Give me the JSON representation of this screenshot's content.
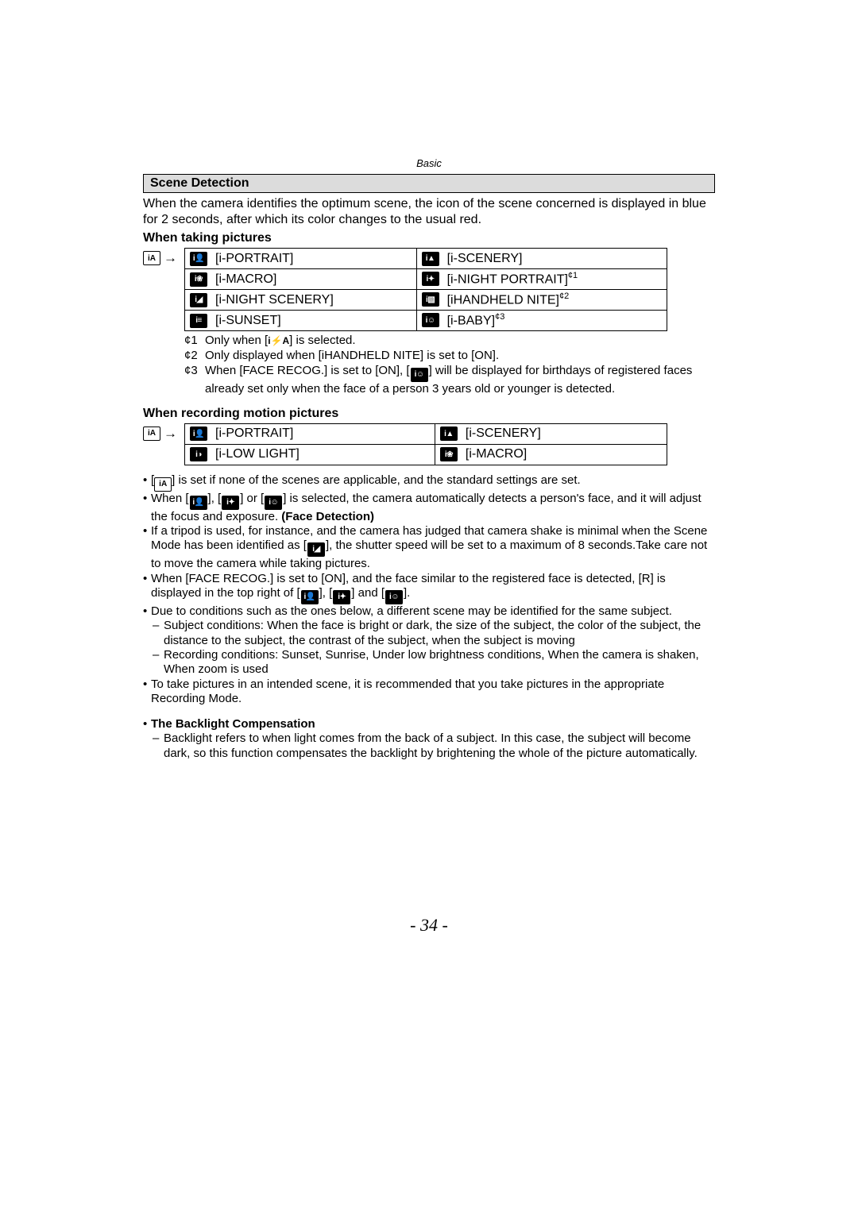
{
  "header": {
    "basic": "Basic"
  },
  "section": {
    "title": "Scene Detection"
  },
  "intro": "When the camera identifies the optimum scene, the icon of the scene concerned is displayed in blue for 2 seconds, after which its color changes to the usual red.",
  "sub1": "When taking pictures",
  "sub2": "When recording motion pictures",
  "iaLabel": "iA",
  "arrow": "→",
  "table1": [
    [
      {
        "icon": "i👤",
        "label": "[i-PORTRAIT]"
      },
      {
        "icon": "i▲",
        "label": "[i-SCENERY]"
      }
    ],
    [
      {
        "icon": "i❀",
        "label": "[i-MACRO]"
      },
      {
        "icon": "i✦",
        "label": "[i-NIGHT PORTRAIT]",
        "sup": "¢1"
      }
    ],
    [
      {
        "icon": "i◢",
        "label": "[i-NIGHT SCENERY]"
      },
      {
        "icon": "i▧",
        "label": "[iHANDHELD NITE]",
        "sup": "¢2"
      }
    ],
    [
      {
        "icon": "i≡",
        "label": "[i-SUNSET]"
      },
      {
        "icon": "i☺",
        "label": "[i-BABY]",
        "sup": "¢3"
      }
    ]
  ],
  "fn1": {
    "m": "¢1",
    "t": "Only when [ ] is selected.",
    "flash": "i⚡A"
  },
  "fn2": {
    "m": "¢2",
    "t": "Only displayed when [iHANDHELD NITE] is set to [ON]."
  },
  "fn3": {
    "m": "¢3",
    "t1": "When [FACE RECOG.] is set to [ON], [",
    "t2": "] will be displayed for birthdays of registered faces already set only when the face of a person 3 years old or younger is detected."
  },
  "table2": [
    [
      {
        "icon": "i👤",
        "label": "[i-PORTRAIT]"
      },
      {
        "icon": "i▲",
        "label": "[i-SCENERY]"
      }
    ],
    [
      {
        "icon": "i◑",
        "label": "[i-LOW LIGHT]"
      },
      {
        "icon": "i❀",
        "label": "[i-MACRO]"
      }
    ]
  ],
  "bul1a": "[",
  "bul1b": "] is set if none of the scenes are applicable, and the standard settings are set.",
  "bul2a": "When [",
  "bul2b": "], [",
  "bul2c": "] or [",
  "bul2d": "] is selected, the camera automatically detects a person's face, and it will adjust the focus and exposure. ",
  "bul2e": "(Face Detection)",
  "bul3a": "If a tripod is used, for instance, and the camera has judged that camera shake is minimal when the Scene Mode has been identified as [",
  "bul3b": "], the shutter speed will be set to a maximum of 8 seconds.Take care not to move the camera while taking pictures.",
  "bul4a": "When [FACE RECOG.] is set to [ON], and the face similar to the registered face is detected, [R] is displayed in the top right of [",
  "bul4b": "], [",
  "bul4c": "] and [",
  "bul4d": "].",
  "bul5": "Due to conditions such as the ones below, a different scene may be identified for the same subject.",
  "bul5s1": "Subject conditions: When the face is bright or dark, the size of the subject, the color of the subject, the distance to the subject, the contrast of the subject, when the subject is moving",
  "bul5s2": "Recording conditions: Sunset, Sunrise, Under low brightness conditions, When the camera is shaken, When zoom is used",
  "bul6": "To take pictures in an intended scene, it is recommended that you take pictures in the appropriate Recording Mode.",
  "bulBC": "The Backlight Compensation",
  "bulBCs": "Backlight refers to when light comes from the back of a subject. In this case, the subject will become dark, so this function compensates the backlight by brightening the whole of the picture automatically.",
  "pageNum": "- 34 -"
}
